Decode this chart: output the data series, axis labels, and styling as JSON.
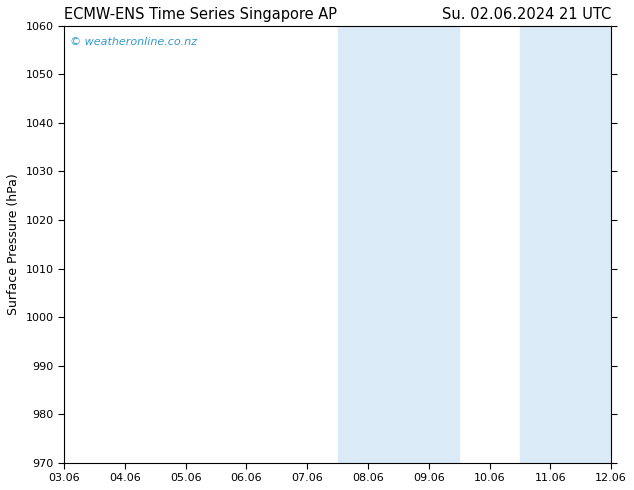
{
  "title_left": "ECMW-ENS Time Series Singapore AP",
  "title_right": "Su. 02.06.2024 21 UTC",
  "ylabel": "Surface Pressure (hPa)",
  "ylim": [
    970,
    1060
  ],
  "yticks": [
    970,
    980,
    990,
    1000,
    1010,
    1020,
    1030,
    1040,
    1050,
    1060
  ],
  "xlim_start": 0,
  "xlim_end": 9,
  "xtick_labels": [
    "03.06",
    "04.06",
    "05.06",
    "06.06",
    "07.06",
    "08.06",
    "09.06",
    "10.06",
    "11.06",
    "12.06"
  ],
  "xtick_positions": [
    0,
    1,
    2,
    3,
    4,
    5,
    6,
    7,
    8,
    9
  ],
  "shaded_regions": [
    {
      "xmin": 4.5,
      "xmax": 6.5
    },
    {
      "xmin": 7.5,
      "xmax": 9.0
    }
  ],
  "background_color": "#ffffff",
  "plot_bg_color": "#ffffff",
  "watermark_text": "© weatheronline.co.nz",
  "watermark_color": "#3399cc",
  "title_fontsize": 10.5,
  "tick_fontsize": 8,
  "ylabel_fontsize": 9,
  "shade_color": "#daeaf6"
}
